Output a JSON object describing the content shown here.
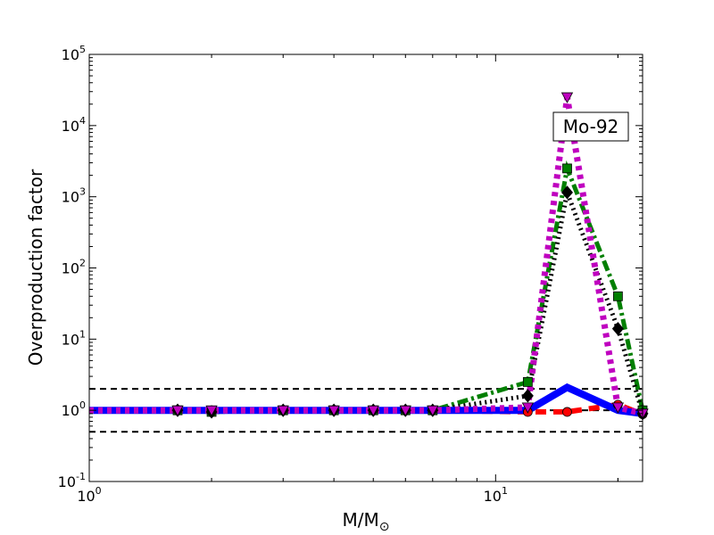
{
  "chart_data": {
    "type": "line",
    "xscale": "log",
    "yscale": "log",
    "xlim": [
      1,
      23
    ],
    "ylim": [
      0.1,
      100000
    ],
    "xlabel_main": "M/M",
    "xlabel_sub": "⊙",
    "ylabel": "Overproduction factor",
    "x_ticks": [
      {
        "value": 1,
        "base": "10",
        "exp": "0"
      },
      {
        "value": 10,
        "base": "10",
        "exp": "1"
      }
    ],
    "y_ticks": [
      {
        "value": 0.1,
        "base": "10",
        "exp": "-1"
      },
      {
        "value": 1,
        "base": "10",
        "exp": "0"
      },
      {
        "value": 10,
        "base": "10",
        "exp": "1"
      },
      {
        "value": 100,
        "base": "10",
        "exp": "2"
      },
      {
        "value": 1000,
        "base": "10",
        "exp": "3"
      },
      {
        "value": 10000,
        "base": "10",
        "exp": "4"
      },
      {
        "value": 100000,
        "base": "10",
        "exp": "5"
      }
    ],
    "reference_lines": [
      0.5,
      1,
      2
    ],
    "annotation": "Mo-92",
    "series": [
      {
        "color": "#0000ff",
        "style": "solid",
        "marker": "none",
        "x": [
          1,
          1.65,
          2,
          3,
          4,
          5,
          6,
          7,
          12,
          15,
          20,
          23
        ],
        "y": [
          1,
          1,
          1,
          1,
          1,
          1,
          1,
          1,
          1,
          2.1,
          1,
          0.9
        ]
      },
      {
        "color": "#ff0000",
        "style": "dashed",
        "marker": "circle",
        "x": [
          1,
          1.65,
          2,
          3,
          4,
          5,
          6,
          7,
          12,
          15,
          20,
          23
        ],
        "y": [
          1,
          1,
          1,
          1,
          1,
          1,
          1,
          1,
          0.95,
          0.95,
          1.2,
          0.88
        ]
      },
      {
        "color": "#007f00",
        "style": "dashdot",
        "marker": "square",
        "x": [
          1,
          1.65,
          2,
          3,
          4,
          5,
          6,
          7,
          12,
          15,
          20,
          23
        ],
        "y": [
          1,
          1,
          0.95,
          1,
          1,
          1,
          1,
          1,
          2.5,
          2500,
          40,
          1.0
        ]
      },
      {
        "color": "#000000",
        "style": "dotted",
        "marker": "diamond",
        "x": [
          1,
          1.65,
          2,
          3,
          4,
          5,
          6,
          7,
          12,
          15,
          20,
          23
        ],
        "y": [
          1,
          1,
          0.95,
          1,
          1,
          1,
          1,
          1,
          1.6,
          1150,
          14,
          0.9
        ]
      },
      {
        "color": "#bf00bf",
        "style": "dotted",
        "marker": "triangle-down",
        "x": [
          1,
          1.65,
          2,
          3,
          4,
          5,
          6,
          7,
          12,
          15,
          20,
          23
        ],
        "y": [
          1,
          1,
          1,
          1,
          1,
          1,
          1,
          1,
          1.1,
          25000,
          1.1,
          0.9
        ]
      }
    ]
  }
}
